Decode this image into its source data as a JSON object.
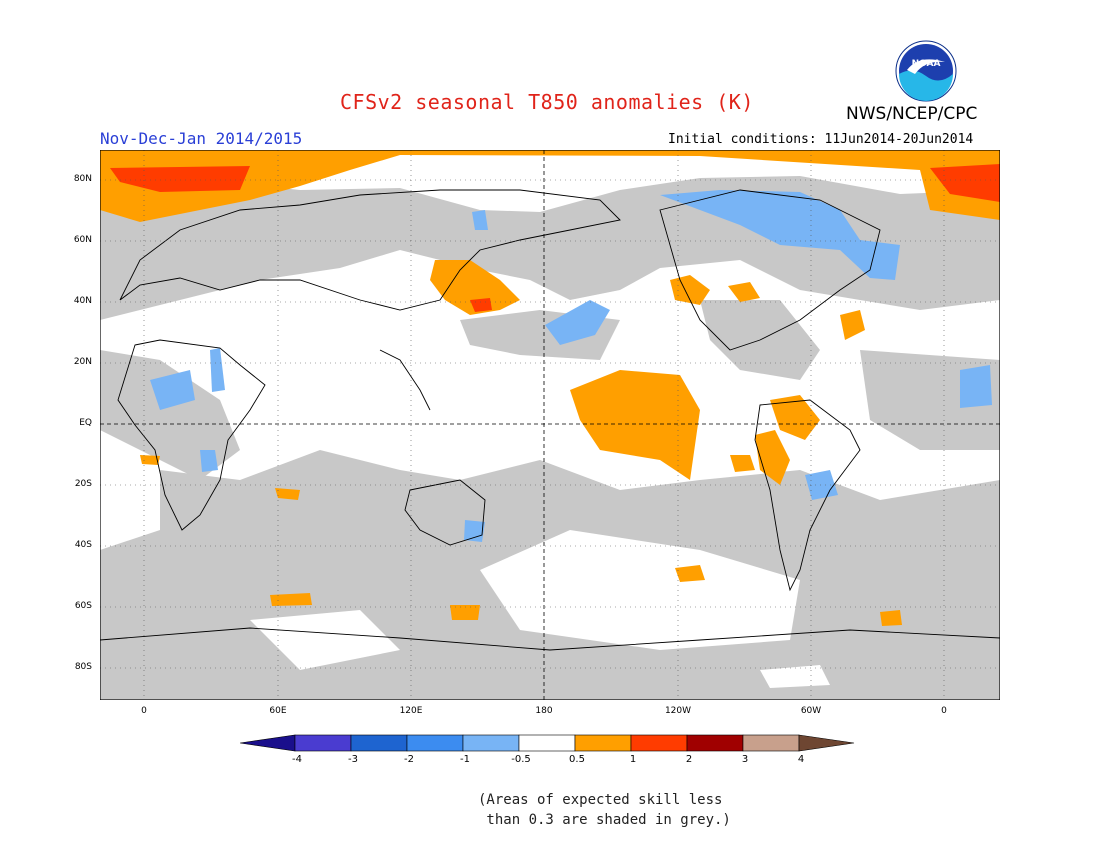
{
  "header": {
    "title": "CFSv2 seasonal T850 anomalies (K)",
    "season": "Nov-Dec-Jan 2014/2015",
    "initial_conditions": "Initial conditions: 11Jun2014-20Jun2014",
    "org": "NWS/NCEP/CPC",
    "logo_text": "NOAA"
  },
  "map": {
    "lat_labels": [
      "80N",
      "60N",
      "40N",
      "20N",
      "EQ",
      "20S",
      "40S",
      "60S",
      "80S"
    ],
    "lon_labels": [
      "0",
      "60E",
      "120E",
      "180",
      "120W",
      "60W",
      "0"
    ],
    "colors": {
      "grey_low_skill": "#c8c8c8",
      "land_outline": "#000000",
      "warm_orange": "#ff9f00",
      "warm_red": "#ff3c00",
      "cool_light_blue": "#78b4f5"
    }
  },
  "legend": {
    "labels": [
      "-4",
      "-3",
      "-2",
      "-1",
      "-0.5",
      "0.5",
      "1",
      "2",
      "3",
      "4"
    ],
    "colors": [
      "#1a0f8c",
      "#4a3cd0",
      "#1e64d0",
      "#3c8cf0",
      "#78b4f5",
      "#ffffff",
      "#ff9f00",
      "#ff3c00",
      "#a00000",
      "#c8a08c",
      "#6e4632"
    ]
  },
  "note": "(Areas of expected skill less\n than 0.3 are shaded in grey.)"
}
